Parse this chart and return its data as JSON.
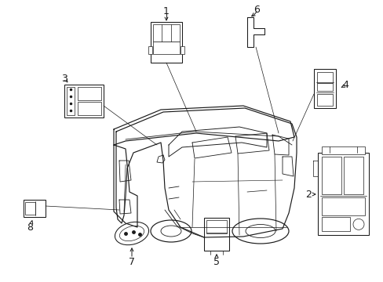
{
  "bg_color": "#ffffff",
  "line_color": "#1a1a1a",
  "fig_width": 4.89,
  "fig_height": 3.6,
  "dpi": 100,
  "car_lw": 0.85,
  "comp_lw": 0.75
}
